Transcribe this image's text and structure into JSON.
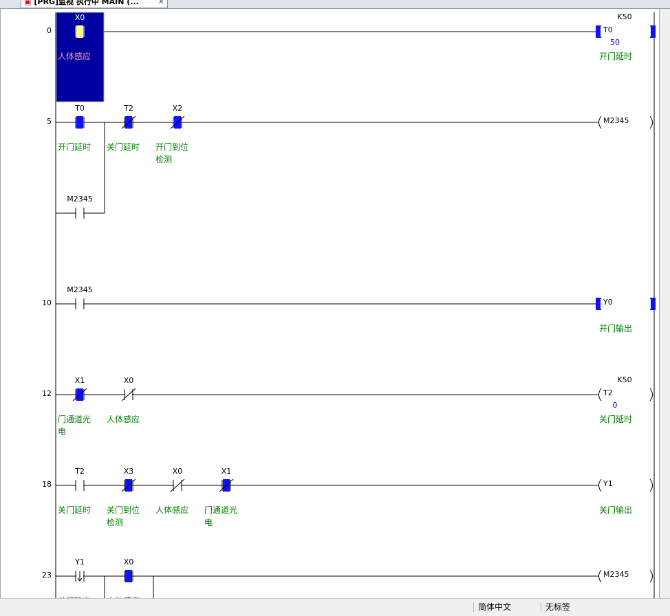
{
  "tab": {
    "title": "[PRG]监视 执行中 MAIN (..."
  },
  "rungs": [
    {
      "step": 0,
      "contacts": [
        {
          "label": "X0",
          "comment": "人体感应",
          "kind": "no",
          "on": true,
          "selected": true
        }
      ],
      "coil": {
        "label": "T0",
        "preset": "K50",
        "current": 50,
        "comment": "开门延时",
        "on": true
      }
    },
    {
      "step": 5,
      "contacts": [
        {
          "label": "T0",
          "comment": "开门延时",
          "kind": "no",
          "on": true
        },
        {
          "label": "T2",
          "comment": "关门延时",
          "kind": "nc",
          "on": true
        },
        {
          "label": "X2",
          "comment": "开门到位检测",
          "kind": "nc",
          "on": true
        }
      ],
      "branch": [
        {
          "label": "M2345",
          "kind": "no",
          "on": false
        }
      ],
      "coil": {
        "label": "M2345",
        "on": false
      }
    },
    {
      "step": 10,
      "contacts": [
        {
          "label": "M2345",
          "kind": "no",
          "on": false
        }
      ],
      "coil": {
        "label": "Y0",
        "comment": "开门输出",
        "on": true
      }
    },
    {
      "step": 12,
      "contacts": [
        {
          "label": "X1",
          "comment": "门通道光电",
          "kind": "nc",
          "on": true
        },
        {
          "label": "X0",
          "comment": "人体感应",
          "kind": "nc",
          "on": false
        }
      ],
      "coil": {
        "label": "T2",
        "preset": "K50",
        "current": 0,
        "comment": "关门延时",
        "on": false
      }
    },
    {
      "step": 18,
      "contacts": [
        {
          "label": "T2",
          "comment": "关门延时",
          "kind": "no",
          "on": false
        },
        {
          "label": "X3",
          "comment": "关门到位检测",
          "kind": "nc",
          "on": true
        },
        {
          "label": "X0",
          "comment": "人体感应",
          "kind": "nc",
          "on": false
        },
        {
          "label": "X1",
          "comment": "门通道光电",
          "kind": "nc",
          "on": true
        }
      ],
      "coil": {
        "label": "Y1",
        "comment": "关门输出",
        "on": false
      }
    },
    {
      "step": 23,
      "contacts": [
        {
          "label": "Y1",
          "comment": "关门输出",
          "kind": "fall",
          "on": false
        },
        {
          "label": "X0",
          "comment": "人体感应",
          "kind": "no",
          "on": true
        }
      ],
      "coil": {
        "label": "M2345",
        "on": false
      }
    }
  ],
  "status": {
    "language": "简体中文",
    "label": "无标签"
  }
}
